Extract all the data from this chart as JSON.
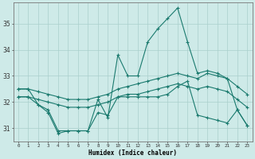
{
  "xlabel": "Humidex (Indice chaleur)",
  "x": [
    0,
    1,
    2,
    3,
    4,
    5,
    6,
    7,
    8,
    9,
    10,
    11,
    12,
    13,
    14,
    15,
    16,
    17,
    18,
    19,
    20,
    21,
    22,
    23
  ],
  "line_max": [
    32.5,
    32.5,
    31.9,
    31.7,
    30.9,
    30.9,
    30.9,
    30.9,
    32.1,
    31.4,
    33.8,
    33.0,
    33.0,
    34.3,
    34.8,
    35.2,
    35.6,
    34.3,
    33.1,
    33.2,
    33.1,
    32.9,
    31.7,
    31.1
  ],
  "line_avg_high": [
    32.5,
    32.5,
    32.4,
    32.3,
    32.2,
    32.1,
    32.1,
    32.1,
    32.2,
    32.3,
    32.5,
    32.6,
    32.7,
    32.8,
    32.9,
    33.0,
    33.1,
    33.0,
    32.9,
    33.1,
    33.0,
    32.9,
    32.6,
    32.3
  ],
  "line_avg_low": [
    32.2,
    32.2,
    32.1,
    32.0,
    31.9,
    31.8,
    31.8,
    31.8,
    31.9,
    32.0,
    32.2,
    32.3,
    32.3,
    32.4,
    32.5,
    32.6,
    32.7,
    32.6,
    32.5,
    32.6,
    32.5,
    32.4,
    32.1,
    31.8
  ],
  "line_min": [
    32.2,
    32.2,
    31.9,
    31.6,
    30.8,
    30.9,
    30.9,
    30.9,
    31.6,
    31.5,
    32.2,
    32.2,
    32.2,
    32.2,
    32.2,
    32.3,
    32.6,
    32.8,
    31.5,
    31.4,
    31.3,
    31.2,
    31.7,
    31.1
  ],
  "color": "#1a7a6e",
  "bg_color": "#ceeae8",
  "grid_color": "#aacfcc",
  "ylim": [
    30.5,
    35.8
  ],
  "yticks": [
    31,
    32,
    33,
    34,
    35
  ]
}
